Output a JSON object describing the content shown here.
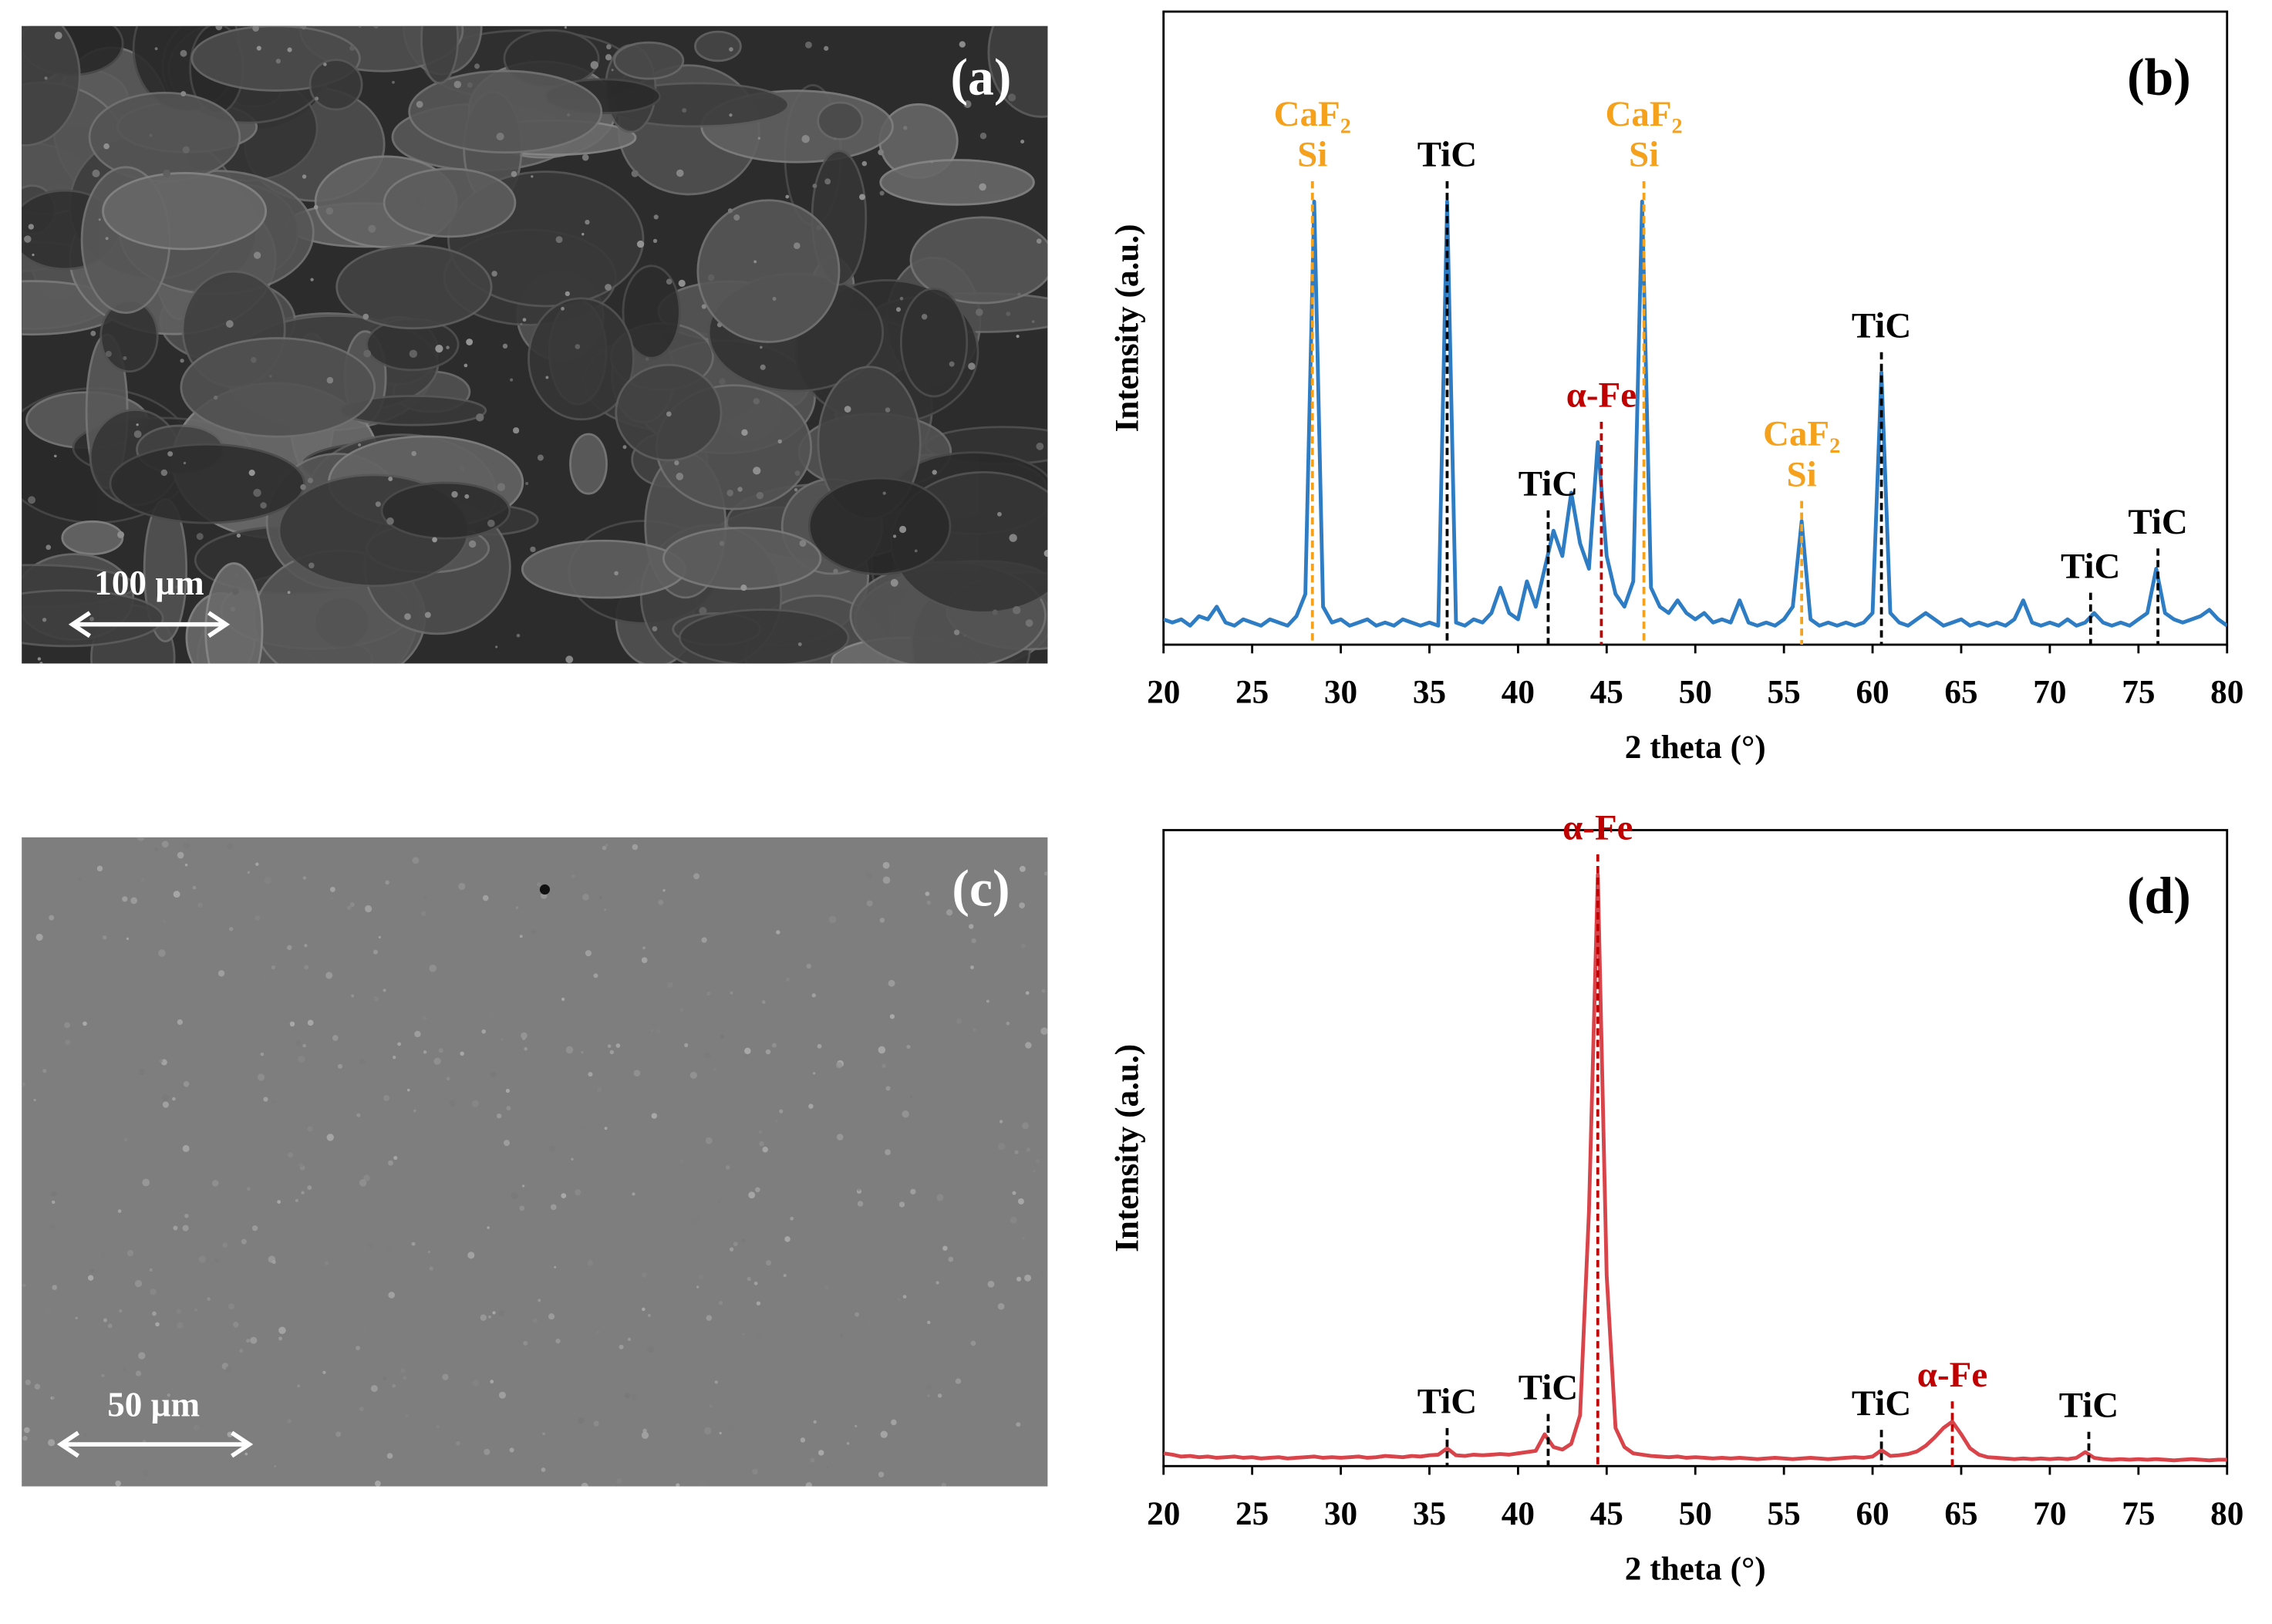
{
  "images": [
    {
      "label": "(a)",
      "scale_bar": "100 µm"
    },
    {
      "label": "(c)",
      "scale_bar": "50 µm"
    }
  ],
  "chart_data": [
    {
      "type": "line",
      "panel_label": "(b)",
      "x_label": "2 theta (°)",
      "y_label": "Intensity (a.u.)",
      "color": "#2e7dc4",
      "xlim": [
        20,
        80
      ],
      "xticks": [
        20,
        25,
        30,
        35,
        40,
        45,
        50,
        55,
        60,
        65,
        70,
        75,
        80
      ],
      "ylim": [
        0,
        100
      ],
      "x": [
        20,
        20.5,
        21,
        21.5,
        22,
        22.5,
        23,
        23.5,
        24,
        24.5,
        25,
        25.5,
        26,
        26.5,
        27,
        27.5,
        28,
        28.5,
        29,
        29.5,
        30,
        30.5,
        31,
        31.5,
        32,
        32.5,
        33,
        33.5,
        34,
        34.5,
        35,
        35.5,
        36,
        36.5,
        37,
        37.5,
        38,
        38.5,
        39,
        39.5,
        40,
        40.5,
        41,
        41.5,
        42,
        42.5,
        43,
        43.5,
        44,
        44.5,
        45,
        45.5,
        46,
        46.5,
        47,
        47.5,
        48,
        48.5,
        49,
        49.5,
        50,
        50.5,
        51,
        51.5,
        52,
        52.5,
        53,
        53.5,
        54,
        54.5,
        55,
        55.5,
        56,
        56.5,
        57,
        57.5,
        58,
        58.5,
        59,
        59.5,
        60,
        60.5,
        61,
        61.5,
        62,
        62.5,
        63,
        63.5,
        64,
        64.5,
        65,
        65.5,
        66,
        66.5,
        67,
        67.5,
        68,
        68.5,
        69,
        69.5,
        70,
        70.5,
        71,
        71.5,
        72,
        72.5,
        73,
        73.5,
        74,
        74.5,
        75,
        75.5,
        76,
        76.5,
        77,
        77.5,
        78,
        78.5,
        79,
        79.5,
        80
      ],
      "values": [
        4,
        3.5,
        4,
        3,
        4.5,
        4,
        6,
        3.5,
        3,
        4,
        3.5,
        3,
        4,
        3.5,
        3,
        4.5,
        8,
        70,
        6,
        3.5,
        4,
        3,
        3.5,
        4,
        3,
        3.5,
        3,
        4,
        3.5,
        3,
        3.5,
        3,
        70,
        3.5,
        3,
        4,
        3.5,
        5,
        9,
        5,
        4,
        10,
        6,
        12,
        18,
        14,
        24,
        16,
        12,
        32,
        14,
        8,
        6,
        10,
        70,
        9,
        6,
        5,
        7,
        5,
        4,
        5,
        3.5,
        4,
        3.5,
        7,
        3.5,
        3,
        3.5,
        3,
        4,
        6,
        19.5,
        4,
        3,
        3.5,
        3,
        3.5,
        3,
        3.5,
        5,
        43,
        5,
        3.5,
        3,
        4,
        5,
        4,
        3,
        3.5,
        4,
        3,
        3.5,
        3,
        3.5,
        3,
        4,
        7,
        3.5,
        3,
        3.5,
        3,
        4,
        3,
        3.5,
        5,
        3.5,
        3,
        3.5,
        3,
        4,
        5,
        12,
        5,
        4,
        3.5,
        4,
        4.5,
        5.5,
        4,
        3
      ],
      "annotations": [
        {
          "text": [
            "CaF₂",
            "Si"
          ],
          "x": 28.4,
          "color": "#f5a11c"
        },
        {
          "text": [
            "TiC"
          ],
          "x": 36,
          "color": "#000000"
        },
        {
          "text": [
            "TiC"
          ],
          "x": 41.7,
          "color": "#000000"
        },
        {
          "text": [
            "α-Fe"
          ],
          "x": 44.7,
          "color": "#c00000"
        },
        {
          "text": [
            "CaF₂",
            "Si"
          ],
          "x": 47.1,
          "color": "#f5a11c"
        },
        {
          "text": [
            "CaF₂",
            "Si"
          ],
          "x": 56,
          "color": "#f5a11c"
        },
        {
          "text": [
            "TiC"
          ],
          "x": 60.5,
          "color": "#000000"
        },
        {
          "text": [
            "TiC"
          ],
          "x": 72.3,
          "color": "#000000"
        },
        {
          "text": [
            "TiC"
          ],
          "x": 76.1,
          "color": "#000000"
        }
      ]
    },
    {
      "type": "line",
      "panel_label": "(d)",
      "x_label": "2 theta (°)",
      "y_label": "Intensity (a.u.)",
      "color": "#d9434a",
      "xlim": [
        20,
        80
      ],
      "xticks": [
        20,
        25,
        30,
        35,
        40,
        45,
        50,
        55,
        60,
        65,
        70,
        75,
        80
      ],
      "ylim": [
        0,
        100
      ],
      "x": [
        20,
        20.5,
        21,
        21.5,
        22,
        22.5,
        23,
        23.5,
        24,
        24.5,
        25,
        25.5,
        26,
        26.5,
        27,
        27.5,
        28,
        28.5,
        29,
        29.5,
        30,
        30.5,
        31,
        31.5,
        32,
        32.5,
        33,
        33.5,
        34,
        34.5,
        35,
        35.5,
        36,
        36.5,
        37,
        37.5,
        38,
        38.5,
        39,
        39.5,
        40,
        40.5,
        41,
        41.5,
        42,
        42.5,
        43,
        43.5,
        44,
        44.5,
        45,
        45.5,
        46,
        46.5,
        47,
        47.5,
        48,
        48.5,
        49,
        49.5,
        50,
        50.5,
        51,
        51.5,
        52,
        52.5,
        53,
        53.5,
        54,
        54.5,
        55,
        55.5,
        56,
        56.5,
        57,
        57.5,
        58,
        58.5,
        59,
        59.5,
        60,
        60.5,
        61,
        61.5,
        62,
        62.5,
        63,
        63.5,
        64,
        64.5,
        65,
        65.5,
        66,
        66.5,
        67,
        67.5,
        68,
        68.5,
        69,
        69.5,
        70,
        70.5,
        71,
        71.5,
        72,
        72.5,
        73,
        73.5,
        74,
        74.5,
        75,
        75.5,
        76,
        76.5,
        77,
        77.5,
        78,
        78.5,
        79,
        79.5,
        80
      ],
      "values": [
        2,
        1.8,
        1.5,
        1.6,
        1.4,
        1.5,
        1.3,
        1.4,
        1.5,
        1.3,
        1.4,
        1.2,
        1.3,
        1.4,
        1.2,
        1.3,
        1.4,
        1.5,
        1.3,
        1.4,
        1.3,
        1.4,
        1.5,
        1.3,
        1.4,
        1.6,
        1.5,
        1.4,
        1.6,
        1.5,
        1.7,
        1.8,
        2.8,
        1.7,
        1.6,
        1.8,
        1.7,
        1.8,
        1.9,
        1.8,
        2,
        2.2,
        2.4,
        5,
        3,
        2.6,
        3.5,
        8,
        40,
        93,
        30,
        6,
        3,
        2,
        1.8,
        1.6,
        1.5,
        1.4,
        1.5,
        1.3,
        1.4,
        1.3,
        1.2,
        1.3,
        1.2,
        1.3,
        1.2,
        1.1,
        1.2,
        1.3,
        1.2,
        1.1,
        1.2,
        1.3,
        1.2,
        1.1,
        1.2,
        1.3,
        1.4,
        1.3,
        1.5,
        2.5,
        1.6,
        1.7,
        1.9,
        2.3,
        3.2,
        4.5,
        6,
        7,
        5,
        2.8,
        1.8,
        1.4,
        1.3,
        1.2,
        1.1,
        1.2,
        1.1,
        1.2,
        1.1,
        1.2,
        1.1,
        1.3,
        2.2,
        1.3,
        1.1,
        1.0,
        1.1,
        1.0,
        1.1,
        1.0,
        1.1,
        1.0,
        0.9,
        1.0,
        1.1,
        1.0,
        0.9,
        1.0,
        1
      ],
      "annotations": [
        {
          "text": [
            "TiC"
          ],
          "x": 36,
          "color": "#000000"
        },
        {
          "text": [
            "TiC"
          ],
          "x": 41.7,
          "color": "#000000"
        },
        {
          "text": [
            "α-Fe"
          ],
          "x": 44.5,
          "color": "#c00000"
        },
        {
          "text": [
            "TiC"
          ],
          "x": 60.5,
          "color": "#000000"
        },
        {
          "text": [
            "α-Fe"
          ],
          "x": 64.5,
          "color": "#c00000"
        },
        {
          "text": [
            "TiC"
          ],
          "x": 72.2,
          "color": "#000000"
        }
      ]
    }
  ]
}
